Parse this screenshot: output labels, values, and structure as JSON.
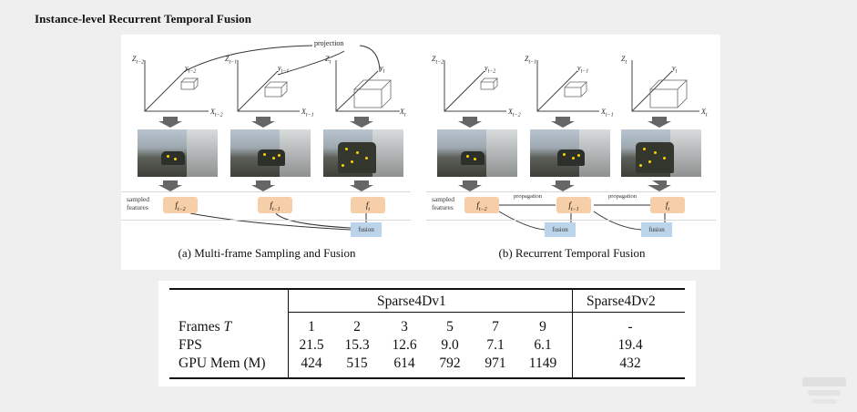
{
  "slide": {
    "title": "Instance-level Recurrent Temporal Fusion"
  },
  "figure": {
    "left_panel": {
      "projection_label": "projection",
      "frames": [
        {
          "z": "Z",
          "z_sub": "t−2",
          "y": "y",
          "y_sub": "t−2",
          "x": "X",
          "x_sub": "t−2"
        },
        {
          "z": "Z",
          "z_sub": "t−1",
          "y": "y",
          "y_sub": "t−1",
          "x": "X",
          "x_sub": "t−1"
        },
        {
          "z": "Z",
          "z_sub": "t",
          "y": "y",
          "y_sub": "t",
          "x": "X",
          "x_sub": "t"
        }
      ],
      "feature_label_line1": "sampled",
      "feature_label_line2": "features",
      "features": [
        {
          "base": "f",
          "sub": "t−2"
        },
        {
          "base": "f",
          "sub": "t−1"
        },
        {
          "base": "f",
          "sub": "t"
        }
      ],
      "fusion_label": "fusion",
      "caption": "(a)  Multi-frame Sampling and Fusion"
    },
    "right_panel": {
      "frames": [
        {
          "z": "Z",
          "z_sub": "t−2",
          "y": "y",
          "y_sub": "t−2",
          "x": "X",
          "x_sub": "t−2"
        },
        {
          "z": "Z",
          "z_sub": "t−1",
          "y": "y",
          "y_sub": "t−1",
          "x": "X",
          "x_sub": "t−1"
        },
        {
          "z": "Z",
          "z_sub": "t",
          "y": "y",
          "y_sub": "t",
          "x": "X",
          "x_sub": "t"
        }
      ],
      "feature_label_line1": "sampled",
      "feature_label_line2": "features",
      "features": [
        {
          "base": "f",
          "sub": "t−2"
        },
        {
          "base": "f",
          "sub": "t−1"
        },
        {
          "base": "f",
          "sub": "t"
        }
      ],
      "propagation_label": "propagation",
      "fusion_label": "fusion",
      "caption": "(b)  Recurrent Temporal Fusion"
    }
  },
  "table": {
    "group_headers": [
      "Sparse4Dv1",
      "Sparse4Dv2"
    ],
    "rows": [
      {
        "label": "Frames ",
        "label_italic": "T",
        "v1": [
          "1",
          "2",
          "3",
          "5",
          "7",
          "9"
        ],
        "v2": "-"
      },
      {
        "label": "FPS",
        "label_italic": "",
        "v1": [
          "21.5",
          "15.3",
          "12.6",
          "9.0",
          "7.1",
          "6.1"
        ],
        "v2": "19.4"
      },
      {
        "label": "GPU Mem (M)",
        "label_italic": "",
        "v1": [
          "424",
          "515",
          "614",
          "792",
          "971",
          "1149"
        ],
        "v2": "432"
      }
    ]
  },
  "colors": {
    "feature_box": "#f6cfa9",
    "fusion_box": "#bcd4ea",
    "point_dots": "#ffd400"
  }
}
